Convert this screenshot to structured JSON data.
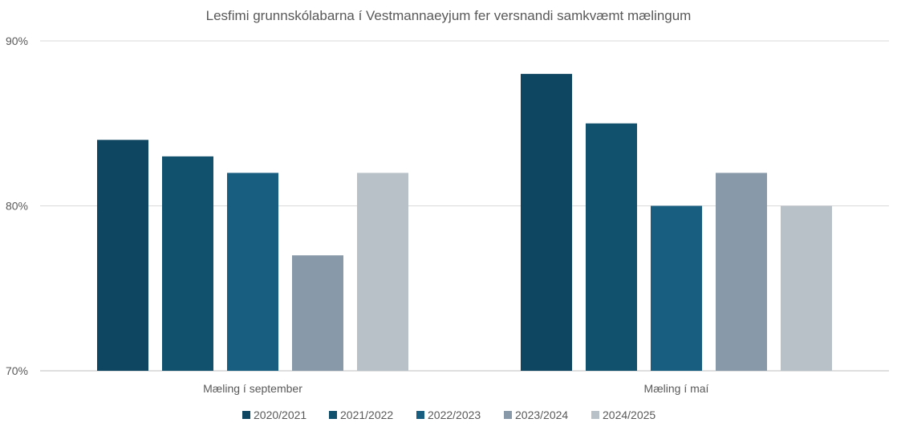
{
  "chart_data": {
    "type": "bar",
    "title": "Lesfimi grunnskólabarna í Vestmannaeyjum fer versnandi samkvæmt mælingum",
    "categories": [
      "Mæling í september",
      "Mæling í maí"
    ],
    "series": [
      {
        "name": "2020/2021",
        "color": "#0e4560",
        "values": [
          84,
          88
        ]
      },
      {
        "name": "2021/2022",
        "color": "#12516d",
        "values": [
          83,
          85
        ]
      },
      {
        "name": "2022/2023",
        "color": "#175e81",
        "values": [
          82,
          80
        ]
      },
      {
        "name": "2023/2024",
        "color": "#8899aa",
        "values": [
          77,
          82
        ]
      },
      {
        "name": "2024/2025",
        "color": "#b8c0c8",
        "values": [
          82,
          80
        ]
      }
    ],
    "ylim": [
      70,
      90
    ],
    "yticks": [
      "70%",
      "80%",
      "90%"
    ],
    "xlabel": "",
    "ylabel": "",
    "grid": true,
    "legend_position": "bottom"
  }
}
